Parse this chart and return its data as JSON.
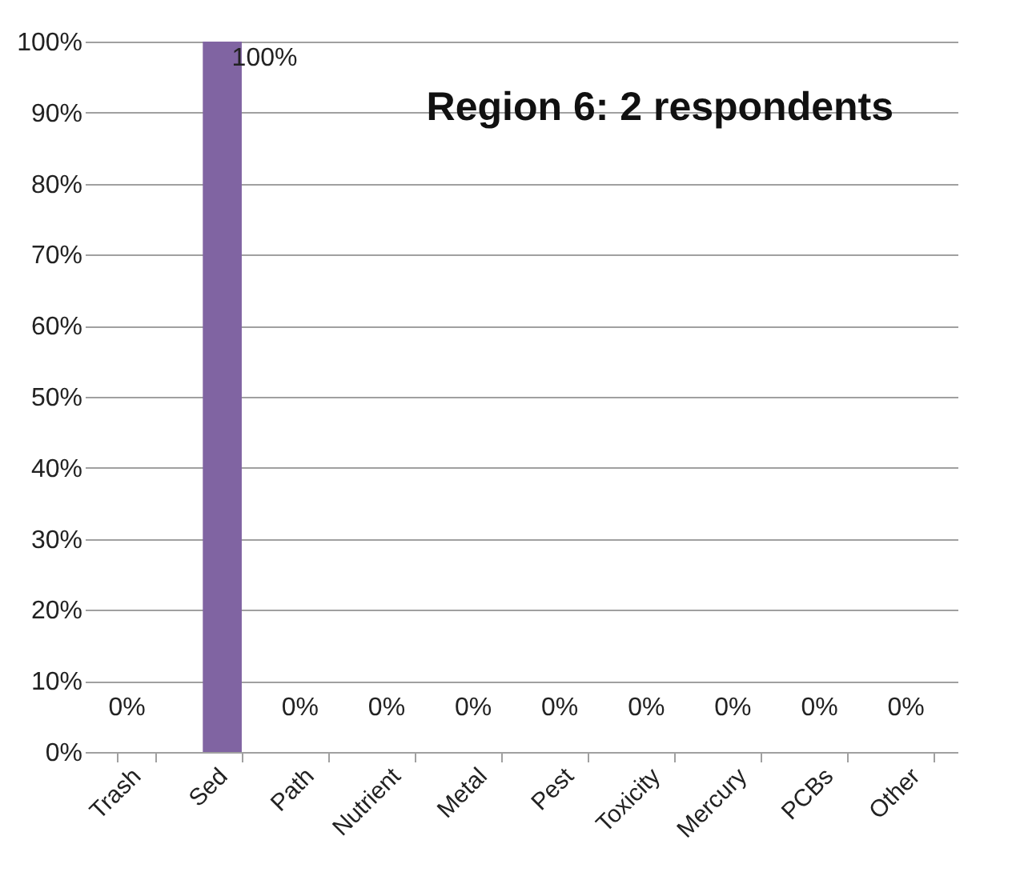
{
  "chart_data": {
    "type": "bar",
    "title": "Region 6: 2 respondents",
    "categories": [
      "Trash",
      "Sed",
      "Path",
      "Nutrient",
      "Metal",
      "Pest",
      "Toxicity",
      "Mercury",
      "PCBs",
      "Other"
    ],
    "values": [
      0,
      100,
      0,
      0,
      0,
      0,
      0,
      0,
      0,
      0
    ],
    "value_labels": [
      "0%",
      "100%",
      "0%",
      "0%",
      "0%",
      "0%",
      "0%",
      "0%",
      "0%",
      "0%"
    ],
    "color": "#8064a2",
    "ylim": [
      0,
      100
    ],
    "yticks": [
      {
        "value": 0,
        "label": "0%"
      },
      {
        "value": 10,
        "label": "10%"
      },
      {
        "value": 20,
        "label": "20%"
      },
      {
        "value": 30,
        "label": "30%"
      },
      {
        "value": 40,
        "label": "40%"
      },
      {
        "value": 50,
        "label": "50%"
      },
      {
        "value": 60,
        "label": "60%"
      },
      {
        "value": 70,
        "label": "70%"
      },
      {
        "value": 80,
        "label": "80%"
      },
      {
        "value": 90,
        "label": "90%"
      },
      {
        "value": 100,
        "label": "100%"
      }
    ],
    "grid": "y"
  }
}
